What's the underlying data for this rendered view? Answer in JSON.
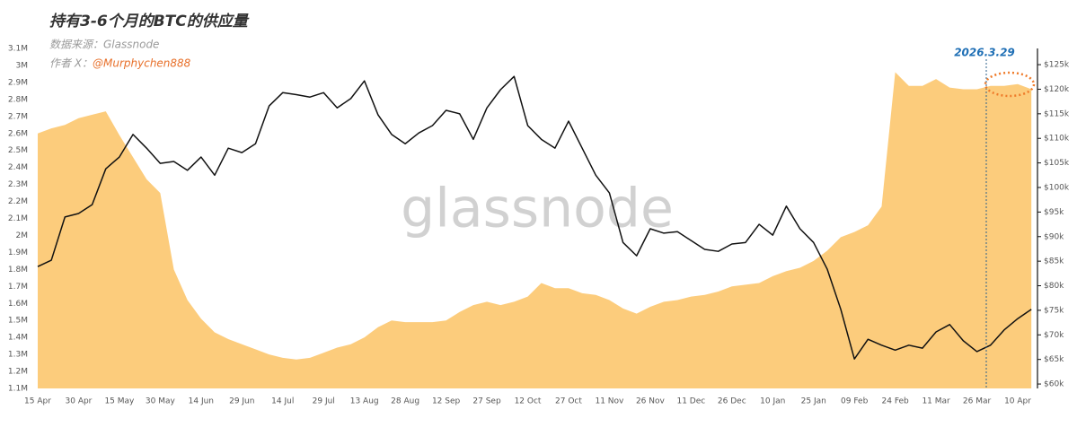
{
  "chart_data": {
    "type": "area-line",
    "title": "持有3-6个月的BTC的供应量",
    "source": "数据来源：Glassnode",
    "author_label": "作者 X：",
    "author": "@Murphychen888",
    "watermark": "glassnode",
    "annotation": "2026.3.29",
    "categories": [
      "15 Apr",
      null,
      null,
      "30 Apr",
      null,
      null,
      "15 May",
      null,
      null,
      "30 May",
      null,
      null,
      "14 Jun",
      null,
      null,
      "29 Jun",
      null,
      null,
      "14 Jul",
      null,
      null,
      "29 Jul",
      null,
      null,
      "13 Aug",
      null,
      null,
      "28 Aug",
      null,
      null,
      "12 Sep",
      null,
      null,
      "27 Sep",
      null,
      null,
      "12 Oct",
      null,
      null,
      "27 Oct",
      null,
      null,
      "11 Nov",
      null,
      null,
      "26 Nov",
      null,
      null,
      "11 Dec",
      null,
      null,
      "26 Dec",
      null,
      null,
      "10 Jan",
      null,
      null,
      "25 Jan",
      null,
      null,
      "09 Feb",
      null,
      null,
      "24 Feb",
      null,
      null,
      "11 Mar",
      null,
      null,
      "26 Mar",
      null,
      null,
      "10 Apr",
      null
    ],
    "series": [
      {
        "type": "area",
        "color": "#fcc66e",
        "values": [
          2600000,
          2630000,
          2650000,
          2690000,
          2710000,
          2730000,
          2590000,
          2460000,
          2330000,
          2250000,
          1800000,
          1620000,
          1510000,
          1430000,
          1390000,
          1360000,
          1330000,
          1300000,
          1280000,
          1270000,
          1280000,
          1310000,
          1340000,
          1360000,
          1400000,
          1460000,
          1500000,
          1490000,
          1490000,
          1490000,
          1500000,
          1550000,
          1590000,
          1610000,
          1590000,
          1610000,
          1640000,
          1720000,
          1690000,
          1690000,
          1660000,
          1650000,
          1620000,
          1570000,
          1540000,
          1580000,
          1610000,
          1620000,
          1640000,
          1650000,
          1670000,
          1700000,
          1710000,
          1720000,
          1760000,
          1790000,
          1810000,
          1850000,
          1910000,
          1990000,
          2020000,
          2060000,
          2170000,
          2960000,
          2880000,
          2880000,
          2920000,
          2870000,
          2860000,
          2860000,
          2880000,
          2880000,
          2890000,
          2860000
        ]
      },
      {
        "type": "line",
        "color": "#111111",
        "axis": "y2",
        "values": [
          83900,
          85200,
          94000,
          94700,
          96500,
          103800,
          106200,
          110800,
          108000,
          104900,
          105300,
          103500,
          106200,
          102500,
          108000,
          107100,
          108900,
          116600,
          119300,
          118900,
          118400,
          119300,
          116200,
          118100,
          121700,
          114800,
          110800,
          108900,
          111100,
          112600,
          115700,
          115000,
          109800,
          116200,
          119900,
          122600,
          112600,
          109800,
          108000,
          113500,
          108000,
          102500,
          98900,
          88800,
          86100,
          91600,
          90700,
          91000,
          89200,
          87400,
          87000,
          88500,
          88800,
          92500,
          90300,
          96200,
          91600,
          88800,
          83400,
          75200,
          65100,
          69100,
          67900,
          66900,
          67900,
          67300,
          70600,
          72100,
          68800,
          66600,
          67900,
          71000,
          73300,
          75200
        ]
      }
    ],
    "ylim": [
      1100000,
      3100000
    ],
    "yticks": [
      {
        "value": 1100000,
        "label": "1.1M"
      },
      {
        "value": 1200000,
        "label": "1.2M"
      },
      {
        "value": 1300000,
        "label": "1.3M"
      },
      {
        "value": 1400000,
        "label": "1.4M"
      },
      {
        "value": 1500000,
        "label": "1.5M"
      },
      {
        "value": 1600000,
        "label": "1.6M"
      },
      {
        "value": 1700000,
        "label": "1.7M"
      },
      {
        "value": 1800000,
        "label": "1.8M"
      },
      {
        "value": 1900000,
        "label": "1.9M"
      },
      {
        "value": 2000000,
        "label": "2M"
      },
      {
        "value": 2100000,
        "label": "2.1M"
      },
      {
        "value": 2200000,
        "label": "2.2M"
      },
      {
        "value": 2300000,
        "label": "2.3M"
      },
      {
        "value": 2400000,
        "label": "2.4M"
      },
      {
        "value": 2500000,
        "label": "2.5M"
      },
      {
        "value": 2600000,
        "label": "2.6M"
      },
      {
        "value": 2700000,
        "label": "2.7M"
      },
      {
        "value": 2800000,
        "label": "2.8M"
      },
      {
        "value": 2900000,
        "label": "2.9M"
      },
      {
        "value": 3000000,
        "label": "3M"
      },
      {
        "value": 3100000,
        "label": "3.1M"
      }
    ],
    "y2lim": [
      59100,
      128300
    ],
    "y2ticks": [
      {
        "value": 60000,
        "label": "$60k"
      },
      {
        "value": 65000,
        "label": "$65k"
      },
      {
        "value": 70000,
        "label": "$70k"
      },
      {
        "value": 75000,
        "label": "$75k"
      },
      {
        "value": 80000,
        "label": "$80k"
      },
      {
        "value": 85000,
        "label": "$85k"
      },
      {
        "value": 90000,
        "label": "$90k"
      },
      {
        "value": 95000,
        "label": "$95k"
      },
      {
        "value": 100000,
        "label": "$100k"
      },
      {
        "value": 105000,
        "label": "$105k"
      },
      {
        "value": 110000,
        "label": "$110k"
      },
      {
        "value": 115000,
        "label": "$115k"
      },
      {
        "value": 120000,
        "label": "$120k"
      },
      {
        "value": 125000,
        "label": "$125k"
      }
    ]
  }
}
